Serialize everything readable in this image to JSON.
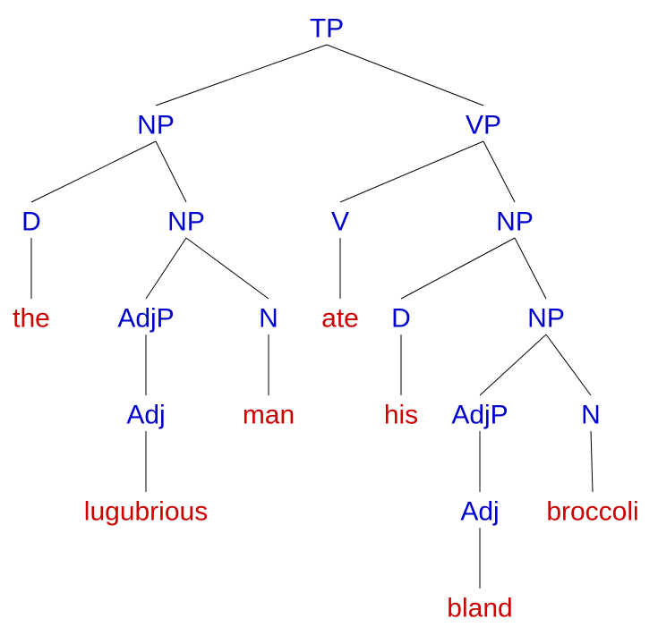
{
  "colors": {
    "category": "#0000cc",
    "word": "#cc0000",
    "line": "#000000"
  },
  "tree": {
    "label": "TP",
    "kind": "category",
    "children": [
      {
        "label": "NP",
        "kind": "category",
        "children": [
          {
            "label": "D",
            "kind": "category",
            "children": [
              {
                "label": "the",
                "kind": "word",
                "children": []
              }
            ]
          },
          {
            "label": "NP",
            "kind": "category",
            "children": [
              {
                "label": "AdjP",
                "kind": "category",
                "children": [
                  {
                    "label": "Adj",
                    "kind": "category",
                    "children": [
                      {
                        "label": "lugubrious",
                        "kind": "word",
                        "children": []
                      }
                    ]
                  }
                ]
              },
              {
                "label": "N",
                "kind": "category",
                "children": [
                  {
                    "label": "man",
                    "kind": "word",
                    "children": []
                  }
                ]
              }
            ]
          }
        ]
      },
      {
        "label": "VP",
        "kind": "category",
        "children": [
          {
            "label": "V",
            "kind": "category",
            "children": [
              {
                "label": "ate",
                "kind": "word",
                "children": []
              }
            ]
          },
          {
            "label": "NP",
            "kind": "category",
            "children": [
              {
                "label": "D",
                "kind": "category",
                "children": [
                  {
                    "label": "his",
                    "kind": "word",
                    "children": []
                  }
                ]
              },
              {
                "label": "NP",
                "kind": "category",
                "children": [
                  {
                    "label": "AdjP",
                    "kind": "category",
                    "children": [
                      {
                        "label": "Adj",
                        "kind": "category",
                        "children": [
                          {
                            "label": "bland",
                            "kind": "word",
                            "children": []
                          }
                        ]
                      }
                    ]
                  },
                  {
                    "label": "N",
                    "kind": "category",
                    "children": [
                      {
                        "label": "broccoli",
                        "kind": "word",
                        "children": []
                      }
                    ]
                  }
                ]
              }
            ]
          }
        ]
      }
    ]
  }
}
